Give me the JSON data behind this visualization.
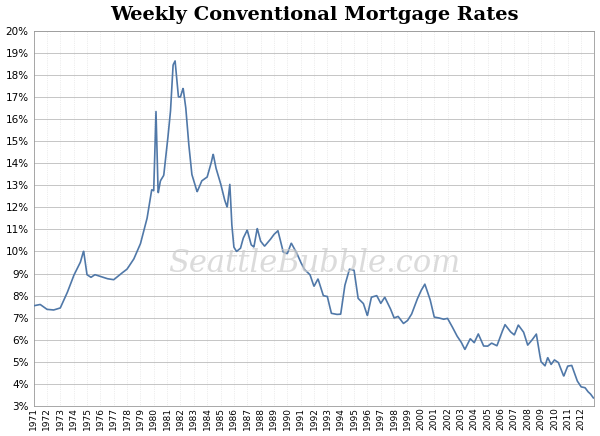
{
  "title": "Weekly Conventional Mortgage Rates",
  "title_fontsize": 14,
  "line_color": "#5078A8",
  "line_width": 1.2,
  "bg_color": "#FFFFFF",
  "plot_bg_color": "#FFFFFF",
  "grid_color_major": "#BBBBBB",
  "grid_color_minor": "#DDDDDD",
  "ylim": [
    3,
    20
  ],
  "yticks": [
    3,
    4,
    5,
    6,
    7,
    8,
    9,
    10,
    11,
    12,
    13,
    14,
    15,
    16,
    17,
    18,
    19,
    20
  ],
  "watermark": "SeattleBubble.com",
  "watermark_color": "#CCCCCC",
  "watermark_fontsize": 22,
  "x_tick_years": [
    1971,
    1972,
    1973,
    1974,
    1975,
    1976,
    1977,
    1978,
    1979,
    1980,
    1981,
    1982,
    1983,
    1984,
    1985,
    1986,
    1987,
    1988,
    1989,
    1990,
    1991,
    1992,
    1993,
    1994,
    1995,
    1996,
    1997,
    1998,
    1999,
    2000,
    2001,
    2002,
    2003,
    2004,
    2005,
    2006,
    2007,
    2008,
    2009,
    2010,
    2011,
    2012
  ],
  "key_points": [
    [
      1971.0,
      7.54
    ],
    [
      1971.5,
      7.6
    ],
    [
      1972.0,
      7.38
    ],
    [
      1972.5,
      7.35
    ],
    [
      1973.0,
      7.44
    ],
    [
      1973.5,
      8.1
    ],
    [
      1974.0,
      8.9
    ],
    [
      1974.5,
      9.5
    ],
    [
      1974.75,
      10.03
    ],
    [
      1975.0,
      8.95
    ],
    [
      1975.3,
      8.83
    ],
    [
      1975.6,
      8.95
    ],
    [
      1976.0,
      8.87
    ],
    [
      1976.5,
      8.77
    ],
    [
      1977.0,
      8.72
    ],
    [
      1977.5,
      8.97
    ],
    [
      1978.0,
      9.2
    ],
    [
      1978.5,
      9.65
    ],
    [
      1979.0,
      10.34
    ],
    [
      1979.5,
      11.5
    ],
    [
      1979.85,
      12.8
    ],
    [
      1980.0,
      12.75
    ],
    [
      1980.17,
      16.35
    ],
    [
      1980.33,
      12.63
    ],
    [
      1980.5,
      13.2
    ],
    [
      1980.75,
      13.45
    ],
    [
      1981.0,
      14.8
    ],
    [
      1981.25,
      16.3
    ],
    [
      1981.45,
      18.45
    ],
    [
      1981.6,
      18.63
    ],
    [
      1981.85,
      17.0
    ],
    [
      1982.0,
      17.0
    ],
    [
      1982.2,
      17.4
    ],
    [
      1982.4,
      16.5
    ],
    [
      1982.6,
      15.0
    ],
    [
      1982.85,
      13.5
    ],
    [
      1983.0,
      13.2
    ],
    [
      1983.25,
      12.7
    ],
    [
      1983.6,
      13.2
    ],
    [
      1984.0,
      13.37
    ],
    [
      1984.3,
      14.0
    ],
    [
      1984.45,
      14.42
    ],
    [
      1984.65,
      13.8
    ],
    [
      1985.0,
      13.1
    ],
    [
      1985.3,
      12.35
    ],
    [
      1985.5,
      12.0
    ],
    [
      1985.7,
      13.05
    ],
    [
      1985.85,
      11.2
    ],
    [
      1986.0,
      10.2
    ],
    [
      1986.2,
      10.0
    ],
    [
      1986.5,
      10.15
    ],
    [
      1986.7,
      10.6
    ],
    [
      1987.0,
      10.97
    ],
    [
      1987.3,
      10.3
    ],
    [
      1987.5,
      10.2
    ],
    [
      1987.75,
      11.05
    ],
    [
      1988.0,
      10.47
    ],
    [
      1988.3,
      10.24
    ],
    [
      1988.7,
      10.52
    ],
    [
      1989.0,
      10.77
    ],
    [
      1989.3,
      10.94
    ],
    [
      1989.7,
      9.97
    ],
    [
      1990.0,
      9.9
    ],
    [
      1990.3,
      10.38
    ],
    [
      1990.7,
      9.94
    ],
    [
      1991.0,
      9.52
    ],
    [
      1991.3,
      9.18
    ],
    [
      1991.7,
      8.95
    ],
    [
      1992.0,
      8.42
    ],
    [
      1992.3,
      8.76
    ],
    [
      1992.7,
      8.0
    ],
    [
      1993.0,
      7.96
    ],
    [
      1993.3,
      7.2
    ],
    [
      1993.7,
      7.15
    ],
    [
      1994.0,
      7.16
    ],
    [
      1994.3,
      8.44
    ],
    [
      1994.65,
      9.2
    ],
    [
      1995.0,
      9.15
    ],
    [
      1995.3,
      7.88
    ],
    [
      1995.7,
      7.64
    ],
    [
      1996.0,
      7.09
    ],
    [
      1996.3,
      7.93
    ],
    [
      1996.7,
      8.0
    ],
    [
      1997.0,
      7.65
    ],
    [
      1997.3,
      7.93
    ],
    [
      1997.7,
      7.44
    ],
    [
      1998.0,
      6.99
    ],
    [
      1998.3,
      7.06
    ],
    [
      1998.7,
      6.74
    ],
    [
      1999.0,
      6.87
    ],
    [
      1999.3,
      7.15
    ],
    [
      1999.7,
      7.8
    ],
    [
      2000.0,
      8.21
    ],
    [
      2000.3,
      8.52
    ],
    [
      2000.7,
      7.81
    ],
    [
      2001.0,
      7.03
    ],
    [
      2001.3,
      7.0
    ],
    [
      2001.7,
      6.93
    ],
    [
      2002.0,
      6.97
    ],
    [
      2002.3,
      6.65
    ],
    [
      2002.7,
      6.18
    ],
    [
      2003.0,
      5.92
    ],
    [
      2003.3,
      5.56
    ],
    [
      2003.7,
      6.05
    ],
    [
      2004.0,
      5.87
    ],
    [
      2004.3,
      6.27
    ],
    [
      2004.7,
      5.72
    ],
    [
      2005.0,
      5.71
    ],
    [
      2005.3,
      5.85
    ],
    [
      2005.7,
      5.73
    ],
    [
      2006.0,
      6.23
    ],
    [
      2006.3,
      6.69
    ],
    [
      2006.7,
      6.37
    ],
    [
      2007.0,
      6.22
    ],
    [
      2007.3,
      6.67
    ],
    [
      2007.7,
      6.34
    ],
    [
      2008.0,
      5.76
    ],
    [
      2008.3,
      5.97
    ],
    [
      2008.65,
      6.26
    ],
    [
      2008.85,
      5.5
    ],
    [
      2009.0,
      5.01
    ],
    [
      2009.3,
      4.82
    ],
    [
      2009.5,
      5.2
    ],
    [
      2009.75,
      4.88
    ],
    [
      2010.0,
      5.09
    ],
    [
      2010.3,
      4.97
    ],
    [
      2010.7,
      4.35
    ],
    [
      2011.0,
      4.81
    ],
    [
      2011.3,
      4.84
    ],
    [
      2011.7,
      4.15
    ],
    [
      2012.0,
      3.87
    ],
    [
      2012.3,
      3.83
    ],
    [
      2012.5,
      3.66
    ],
    [
      2012.7,
      3.55
    ],
    [
      2012.92,
      3.37
    ]
  ]
}
